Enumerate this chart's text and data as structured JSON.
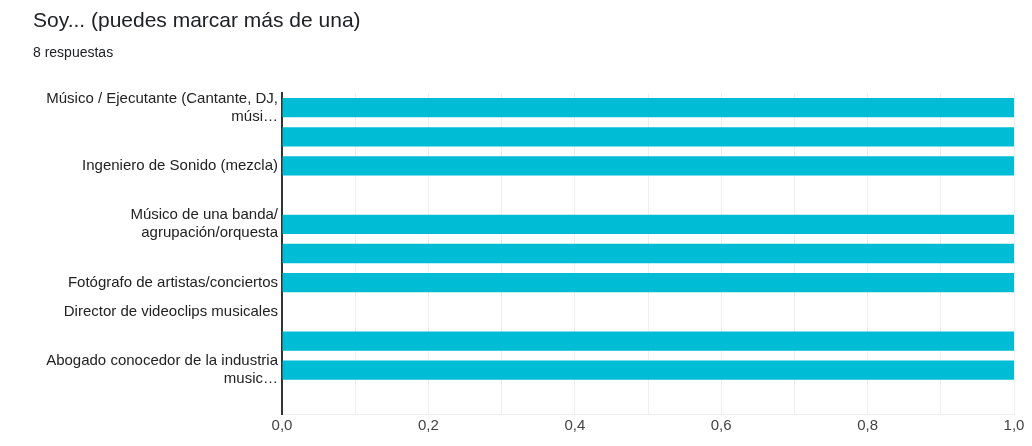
{
  "chart_data": {
    "type": "bar",
    "orientation": "horizontal",
    "title": "Soy... (puedes marcar más de una)",
    "subtitle": "8 respuestas",
    "categories": [
      "Músico / Ejecutante (Cantante, DJ, músi…",
      null,
      "Ingeniero de Sonido (mezcla)",
      null,
      "Músico de una banda/ agrupación/orquesta",
      null,
      "Fotógrafo de artistas/conciertos",
      "Director de videoclips musicales",
      null,
      "Abogado conocedor de la industria music…",
      null
    ],
    "values": [
      1,
      1,
      1,
      0,
      1,
      1,
      1,
      0,
      1,
      1,
      0
    ],
    "color": "#00bcd4",
    "xlim": [
      0,
      1
    ],
    "xticks": [
      {
        "value": 0,
        "label": "0,0"
      },
      {
        "value": 0.1,
        "label": null
      },
      {
        "value": 0.2,
        "label": "0,2"
      },
      {
        "value": 0.3,
        "label": null
      },
      {
        "value": 0.4,
        "label": "0,4"
      },
      {
        "value": 0.5,
        "label": null
      },
      {
        "value": 0.6,
        "label": "0,6"
      },
      {
        "value": 0.7,
        "label": null
      },
      {
        "value": 0.8,
        "label": "0,8"
      },
      {
        "value": 0.9,
        "label": null
      },
      {
        "value": 1,
        "label": "1,0"
      }
    ],
    "grid": "x",
    "legend": false
  }
}
